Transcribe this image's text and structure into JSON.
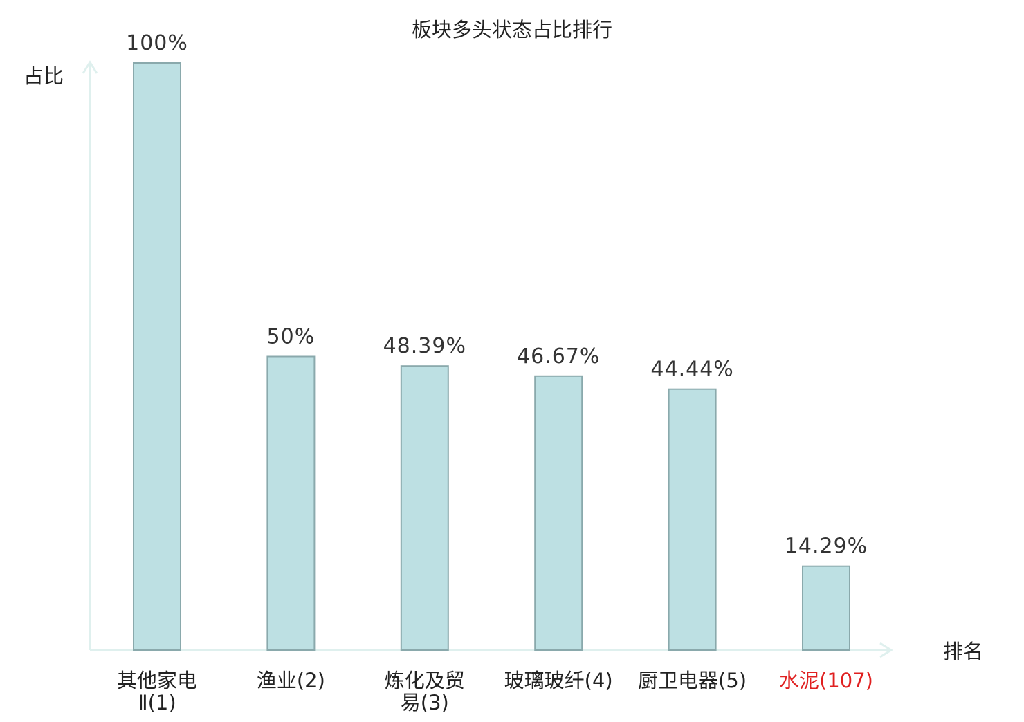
{
  "chart_data": {
    "type": "bar",
    "title": "板块多头状态占比排行",
    "ylabel": "占比",
    "xlabel": "排名",
    "ylim": [
      0,
      100
    ],
    "grid": false,
    "categories": [
      {
        "lines": [
          "其他家电",
          "Ⅱ(1)"
        ],
        "highlight": false
      },
      {
        "lines": [
          "渔业(2)"
        ],
        "highlight": false
      },
      {
        "lines": [
          "炼化及贸",
          "易(3)"
        ],
        "highlight": false
      },
      {
        "lines": [
          "玻璃玻纤(4)"
        ],
        "highlight": false
      },
      {
        "lines": [
          "厨卫电器(5)"
        ],
        "highlight": false
      },
      {
        "lines": [
          "水泥(107)"
        ],
        "highlight": true
      }
    ],
    "values": [
      100,
      50,
      48.39,
      46.67,
      44.44,
      14.29
    ],
    "value_labels": [
      "100%",
      "50%",
      "48.39%",
      "46.67%",
      "44.44%",
      "14.29%"
    ]
  },
  "colors": {
    "bar_fill": "#bde0e3",
    "bar_stroke": "#8aa9ac",
    "axis": "#dff0ee",
    "text": "#222222",
    "value_text": "#333333",
    "highlight": "#e02020"
  }
}
